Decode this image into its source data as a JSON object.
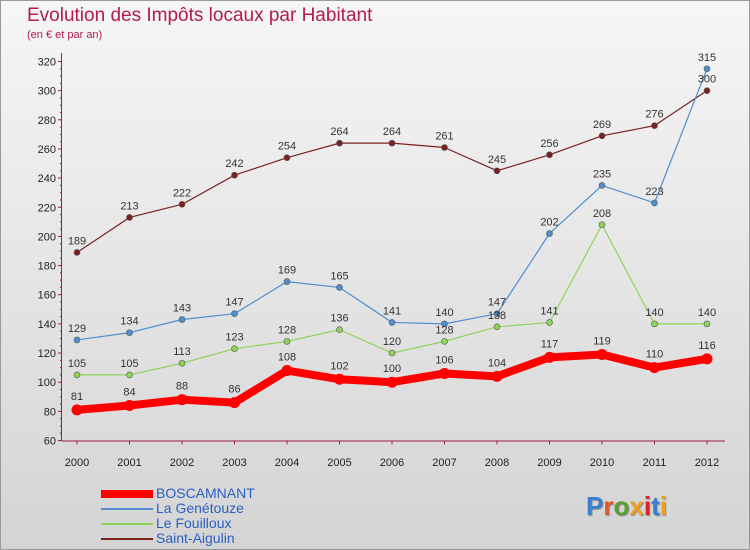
{
  "title": "Evolution des Impôts locaux par Habitant",
  "subtitle": "(en € et par an)",
  "logo": {
    "text": "Proxiti",
    "colors": [
      "#3a7fd0",
      "#e4572e",
      "#5a9e2e",
      "#f0a020",
      "#e02020",
      "#3a7fd0",
      "#f0a020"
    ]
  },
  "chart_data": {
    "type": "line",
    "title": "Evolution des Impôts locaux par Habitant",
    "subtitle": "(en € et par an)",
    "x": [
      "2000",
      "2001",
      "2002",
      "2003",
      "2004",
      "2005",
      "2006",
      "2007",
      "2008",
      "2009",
      "2010",
      "2011",
      "2012"
    ],
    "ylim": [
      60,
      320
    ],
    "yticks": [
      60,
      80,
      100,
      120,
      140,
      160,
      180,
      200,
      220,
      240,
      260,
      280,
      300,
      320
    ],
    "grid": false,
    "legend_position": "bottom-left",
    "series": [
      {
        "name": "BOSCAMNANT",
        "color": "#ff0000",
        "values": [
          81,
          84,
          88,
          86,
          108,
          102,
          100,
          106,
          104,
          117,
          119,
          110,
          116
        ]
      },
      {
        "name": "La Genétouze",
        "color": "#4f8fd0",
        "values": [
          129,
          134,
          143,
          147,
          169,
          165,
          141,
          140,
          147,
          202,
          235,
          223,
          315
        ]
      },
      {
        "name": "Le Fouilloux",
        "color": "#8fd45a",
        "values": [
          105,
          105,
          113,
          123,
          128,
          136,
          120,
          128,
          138,
          141,
          208,
          140,
          140
        ]
      },
      {
        "name": "Saint-Aigulin",
        "color": "#7a2222",
        "values": [
          189,
          213,
          222,
          242,
          254,
          264,
          264,
          261,
          245,
          256,
          269,
          276,
          300
        ]
      }
    ],
    "labels": [
      [
        "81",
        "84",
        "88",
        "86",
        "108",
        "102",
        "100",
        "106",
        "104",
        "117",
        "119",
        "110",
        "116"
      ],
      [
        "129",
        "134",
        "143",
        "147",
        "169",
        "165",
        "141",
        "140",
        "147",
        "202",
        "235",
        "223",
        "315"
      ],
      [
        "105",
        "105",
        "113",
        "123",
        "128",
        "136",
        "120",
        "128",
        "138",
        "141",
        "208",
        "140",
        "140"
      ],
      [
        "189",
        "213",
        "222",
        "242",
        "254",
        "264",
        "264",
        "261",
        "245",
        "256",
        "269",
        "276",
        "300"
      ]
    ]
  }
}
